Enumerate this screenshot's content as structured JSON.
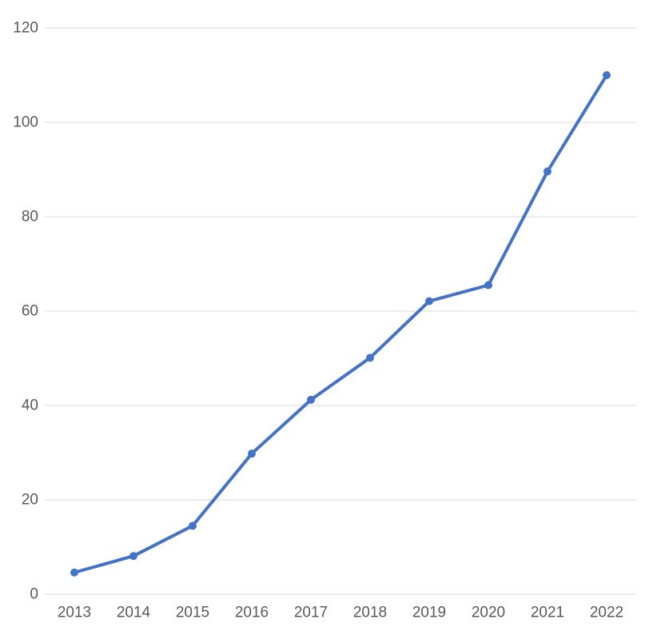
{
  "chart_data": {
    "type": "line",
    "title": "",
    "xlabel": "",
    "ylabel": "",
    "x": [
      "2013",
      "2014",
      "2015",
      "2016",
      "2017",
      "2018",
      "2019",
      "2020",
      "2021",
      "2022"
    ],
    "series": [
      {
        "values": [
          4.6,
          8.1,
          14.5,
          29.8,
          41.2,
          50.1,
          62.1,
          65.5,
          89.6,
          110.0
        ],
        "color": "#4472c4",
        "markers": true
      }
    ],
    "ylim": [
      0,
      120
    ],
    "yticks": [
      "0",
      "20",
      "40",
      "60",
      "80",
      "100",
      "120"
    ],
    "grid": true,
    "legend": "none"
  }
}
